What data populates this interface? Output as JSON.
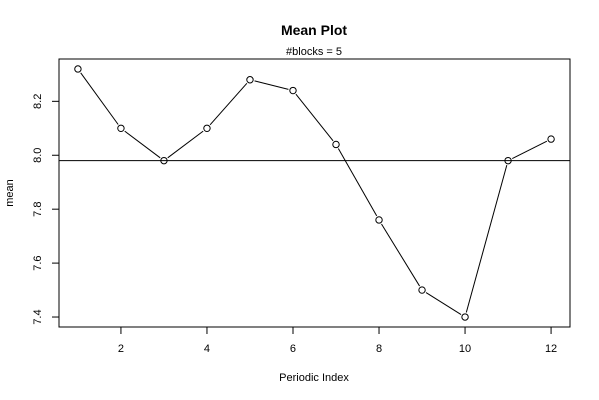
{
  "chart_data": {
    "type": "line",
    "title": "Mean Plot",
    "subtitle": "#blocks =  5",
    "xlabel": "Periodic Index",
    "ylabel": "mean",
    "x": [
      1,
      2,
      3,
      4,
      5,
      6,
      7,
      8,
      9,
      10,
      11,
      12
    ],
    "series": [
      {
        "values": [
          8.32,
          8.1,
          7.98,
          8.1,
          8.28,
          8.24,
          8.04,
          7.76,
          7.5,
          7.4,
          7.98,
          8.06
        ]
      }
    ],
    "reference_line": 7.98,
    "xlim": [
      0.56,
      12.44
    ],
    "ylim": [
      7.363,
      8.357
    ],
    "x_ticks": [
      2,
      4,
      6,
      8,
      10,
      12
    ],
    "y_ticks": [
      7.4,
      7.6,
      7.8,
      8.0,
      8.2
    ],
    "y_tick_labels": [
      "7.4",
      "7.6",
      "7.8",
      "8.0",
      "8.2"
    ],
    "grid": false,
    "marker": "open-circle",
    "line_color": "#000000"
  }
}
